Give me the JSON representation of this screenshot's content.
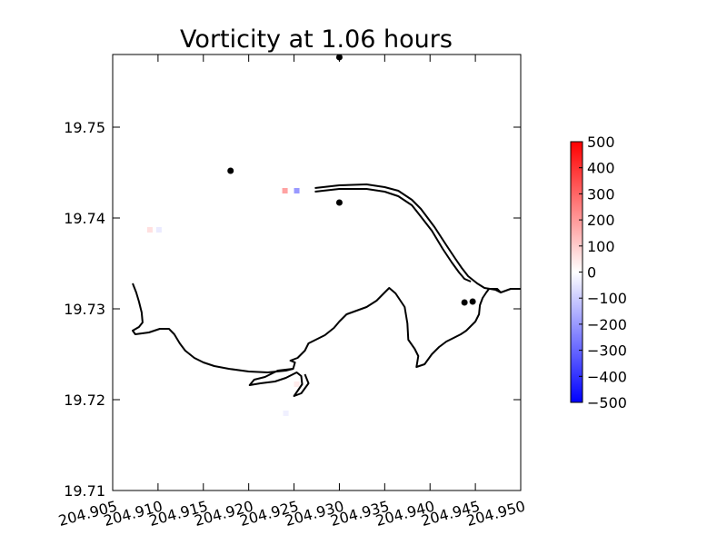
{
  "chart_data": {
    "type": "heatmap",
    "title": "Vorticity at 1.06 hours",
    "xlabel": "",
    "ylabel": "",
    "xlim": [
      204.905,
      204.95
    ],
    "ylim": [
      19.71,
      19.758
    ],
    "x_ticks": [
      "204.905",
      "204.910",
      "204.915",
      "204.920",
      "204.925",
      "204.930",
      "204.935",
      "204.940",
      "204.945",
      "204.950"
    ],
    "x_tick_values": [
      204.905,
      204.91,
      204.915,
      204.92,
      204.925,
      204.93,
      204.935,
      204.94,
      204.945,
      204.95
    ],
    "y_ticks": [
      "19.71",
      "19.72",
      "19.73",
      "19.74",
      "19.75"
    ],
    "y_tick_values": [
      19.71,
      19.72,
      19.73,
      19.74,
      19.75
    ],
    "grid": false,
    "colorbar": {
      "range": [
        -500,
        500
      ],
      "ticks": [
        "500",
        "400",
        "300",
        "200",
        "100",
        "0",
        "−100",
        "−200",
        "−300",
        "−400",
        "−500"
      ],
      "tick_values": [
        500,
        400,
        300,
        200,
        100,
        0,
        -100,
        -200,
        -300,
        -400,
        -500
      ],
      "colors": {
        "min": "#0000ff",
        "mid": "#ffffff",
        "max": "#ff0000"
      }
    },
    "points": [
      {
        "x": 204.93,
        "y": 19.7577
      },
      {
        "x": 204.918,
        "y": 19.7452
      },
      {
        "x": 204.93,
        "y": 19.7417
      },
      {
        "x": 204.9438,
        "y": 19.7307
      },
      {
        "x": 204.9447,
        "y": 19.7308
      }
    ],
    "vorticity_cells": [
      {
        "x": 204.924,
        "y": 19.743,
        "value": 180
      },
      {
        "x": 204.9253,
        "y": 19.743,
        "value": -200
      },
      {
        "x": 204.9091,
        "y": 19.7387,
        "value": 60
      },
      {
        "x": 204.9101,
        "y": 19.7387,
        "value": -40
      },
      {
        "x": 204.9253,
        "y": 19.7217,
        "value": 40
      },
      {
        "x": 204.9241,
        "y": 19.7185,
        "value": -30
      }
    ],
    "coastline": [
      [
        [
          204.9072,
          19.7328
        ],
        [
          204.9076,
          19.7318
        ],
        [
          204.9079,
          19.7308
        ],
        [
          204.9082,
          19.7296
        ],
        [
          204.9083,
          19.7285
        ],
        [
          204.9079,
          19.728
        ],
        [
          204.9072,
          19.7276
        ],
        [
          204.9075,
          19.7272
        ],
        [
          204.909,
          19.7274
        ],
        [
          204.9102,
          19.7278
        ],
        [
          204.9112,
          19.7278
        ],
        [
          204.9118,
          19.7272
        ],
        [
          204.9124,
          19.7262
        ],
        [
          204.913,
          19.7254
        ],
        [
          204.914,
          19.7246
        ],
        [
          204.915,
          19.7241
        ],
        [
          204.9162,
          19.7237
        ],
        [
          204.9178,
          19.7234
        ],
        [
          204.92,
          19.7231
        ],
        [
          204.9221,
          19.723
        ],
        [
          204.9241,
          19.7232
        ],
        [
          204.9249,
          19.7234
        ],
        [
          204.9251,
          19.7241
        ],
        [
          204.9246,
          19.7243
        ],
        [
          204.9254,
          19.7246
        ],
        [
          204.9262,
          19.7254
        ],
        [
          204.9266,
          19.7262
        ],
        [
          204.9274,
          19.7266
        ],
        [
          204.9284,
          19.7271
        ],
        [
          204.9294,
          19.7279
        ],
        [
          204.93,
          19.7286
        ],
        [
          204.9308,
          19.7294
        ],
        [
          204.9319,
          19.7298
        ],
        [
          204.933,
          19.7302
        ],
        [
          204.9341,
          19.7309
        ],
        [
          204.9349,
          19.7317
        ],
        [
          204.9355,
          19.7323
        ],
        [
          204.9362,
          19.7317
        ],
        [
          204.9372,
          19.7302
        ],
        [
          204.9375,
          19.7284
        ],
        [
          204.9376,
          19.7266
        ],
        [
          204.9383,
          19.7256
        ],
        [
          204.9387,
          19.7248
        ],
        [
          204.9385,
          19.7236
        ],
        [
          204.9394,
          19.7239
        ],
        [
          204.9402,
          19.725
        ],
        [
          204.941,
          19.7258
        ],
        [
          204.9418,
          19.7264
        ],
        [
          204.9426,
          19.7268
        ],
        [
          204.9434,
          19.7272
        ],
        [
          204.944,
          19.7276
        ],
        [
          204.9444,
          19.728
        ],
        [
          204.945,
          19.7286
        ],
        [
          204.9454,
          19.7294
        ],
        [
          204.9455,
          19.7304
        ],
        [
          204.9458,
          19.7312
        ],
        [
          204.9462,
          19.7318
        ],
        [
          204.9465,
          19.7322
        ],
        [
          204.9474,
          19.7322
        ],
        [
          204.9478,
          19.7318
        ],
        [
          204.9489,
          19.7322
        ],
        [
          204.95,
          19.7322
        ]
      ],
      [
        [
          204.9249,
          19.7234
        ],
        [
          204.9232,
          19.7232
        ],
        [
          204.9218,
          19.7225
        ],
        [
          204.9206,
          19.7222
        ],
        [
          204.9201,
          19.7216
        ],
        [
          204.9213,
          19.7218
        ],
        [
          204.9229,
          19.722
        ],
        [
          204.9241,
          19.7224
        ],
        [
          204.9253,
          19.723
        ],
        [
          204.9258,
          19.7226
        ],
        [
          204.9259,
          19.7217
        ],
        [
          204.925,
          19.7204
        ],
        [
          204.9258,
          19.7207
        ],
        [
          204.9266,
          19.7218
        ],
        [
          204.9262,
          19.7228
        ]
      ],
      [
        [
          204.9273,
          19.7433
        ],
        [
          204.93,
          19.7436
        ],
        [
          204.933,
          19.7437
        ],
        [
          204.935,
          19.7434
        ],
        [
          204.9365,
          19.743
        ],
        [
          204.938,
          19.742
        ],
        [
          204.939,
          19.741
        ],
        [
          204.9405,
          19.739
        ],
        [
          204.9418,
          19.737
        ],
        [
          204.9428,
          19.7355
        ],
        [
          204.9435,
          19.7345
        ],
        [
          204.9442,
          19.7336
        ],
        [
          204.9452,
          19.7328
        ],
        [
          204.946,
          19.7323
        ],
        [
          204.9472,
          19.7321
        ],
        [
          204.9478,
          19.7318
        ]
      ],
      [
        [
          204.9273,
          19.7429
        ],
        [
          204.93,
          19.7432
        ],
        [
          204.933,
          19.7432
        ],
        [
          204.935,
          19.7429
        ],
        [
          204.9365,
          19.7424
        ],
        [
          204.938,
          19.7414
        ],
        [
          204.9388,
          19.7404
        ],
        [
          204.9402,
          19.7386
        ],
        [
          204.9414,
          19.7366
        ],
        [
          204.9424,
          19.7351
        ],
        [
          204.9432,
          19.734
        ],
        [
          204.9438,
          19.7333
        ],
        [
          204.9445,
          19.733
        ]
      ]
    ]
  }
}
